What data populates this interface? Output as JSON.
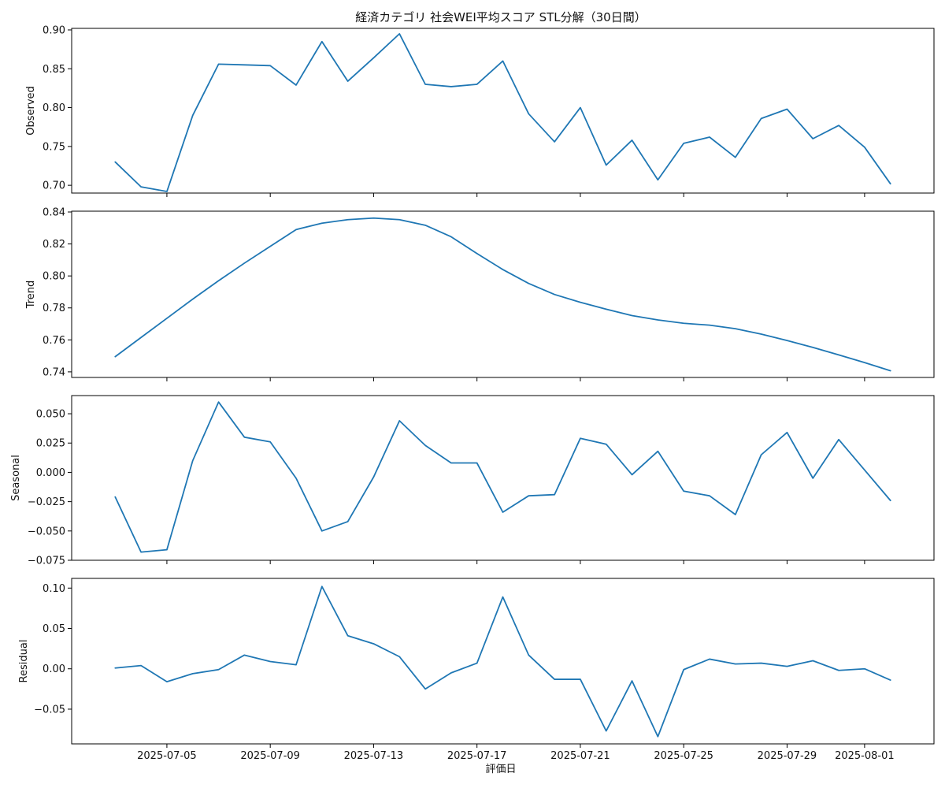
{
  "chart_data": {
    "type": "line",
    "title": "経済カテゴリ 社会WEI平均スコア STL分解（30日間）",
    "xlabel": "評価日",
    "color": "#1f77b4",
    "x": [
      "2025-07-03",
      "2025-07-04",
      "2025-07-05",
      "2025-07-06",
      "2025-07-07",
      "2025-07-08",
      "2025-07-09",
      "2025-07-10",
      "2025-07-11",
      "2025-07-12",
      "2025-07-13",
      "2025-07-14",
      "2025-07-15",
      "2025-07-16",
      "2025-07-17",
      "2025-07-18",
      "2025-07-19",
      "2025-07-20",
      "2025-07-21",
      "2025-07-22",
      "2025-07-23",
      "2025-07-24",
      "2025-07-25",
      "2025-07-26",
      "2025-07-27",
      "2025-07-28",
      "2025-07-29",
      "2025-07-30",
      "2025-07-31",
      "2025-08-01",
      "2025-08-02"
    ],
    "x_ticks": [
      "2025-07-05",
      "2025-07-09",
      "2025-07-13",
      "2025-07-17",
      "2025-07-21",
      "2025-07-25",
      "2025-07-29",
      "2025-08-01"
    ],
    "panels": [
      {
        "name": "Observed",
        "ylabel": "Observed",
        "ylim": [
          0.69,
          0.902
        ],
        "yticks": [
          0.7,
          0.75,
          0.8,
          0.85,
          0.9
        ],
        "ytick_labels": [
          "0.70",
          "0.75",
          "0.80",
          "0.85",
          "0.90"
        ],
        "values": [
          0.73,
          0.698,
          0.692,
          0.79,
          0.856,
          0.855,
          0.854,
          0.829,
          0.885,
          0.834,
          0.864,
          0.895,
          0.83,
          0.827,
          0.83,
          0.86,
          0.792,
          0.756,
          0.8,
          0.726,
          0.758,
          0.707,
          0.754,
          0.762,
          0.736,
          0.786,
          0.798,
          0.76,
          0.777,
          0.749,
          0.702
        ]
      },
      {
        "name": "Trend",
        "ylabel": "Trend",
        "ylim": [
          0.7365,
          0.8405
        ],
        "yticks": [
          0.74,
          0.76,
          0.78,
          0.8,
          0.82,
          0.84
        ],
        "ytick_labels": [
          "0.74",
          "0.76",
          "0.78",
          "0.80",
          "0.82",
          "0.84"
        ],
        "values": [
          0.7495,
          0.7615,
          0.7735,
          0.7855,
          0.797,
          0.808,
          0.8185,
          0.829,
          0.833,
          0.8352,
          0.8362,
          0.8352,
          0.8317,
          0.8245,
          0.814,
          0.804,
          0.7953,
          0.7884,
          0.7835,
          0.7792,
          0.7752,
          0.7725,
          0.7704,
          0.7692,
          0.767,
          0.7636,
          0.7596,
          0.7553,
          0.7506,
          0.7458,
          0.7407
        ]
      },
      {
        "name": "Seasonal",
        "ylabel": "Seasonal",
        "ylim": [
          -0.075,
          0.0655
        ],
        "yticks": [
          -0.075,
          -0.05,
          -0.025,
          0.0,
          0.025,
          0.05
        ],
        "ytick_labels": [
          "−0.075",
          "−0.050",
          "−0.025",
          "0.000",
          "0.025",
          "0.050"
        ],
        "values": [
          -0.021,
          -0.068,
          -0.066,
          0.01,
          0.06,
          0.03,
          0.026,
          -0.005,
          -0.05,
          -0.042,
          -0.004,
          0.044,
          0.023,
          0.008,
          0.008,
          -0.034,
          -0.02,
          -0.019,
          0.029,
          0.024,
          -0.002,
          0.018,
          -0.016,
          -0.02,
          -0.036,
          0.015,
          0.034,
          -0.005,
          0.028,
          0.002,
          -0.024
        ]
      },
      {
        "name": "Residual",
        "ylabel": "Residual",
        "ylim": [
          -0.093,
          0.112
        ],
        "yticks": [
          -0.05,
          0.0,
          0.05,
          0.1
        ],
        "ytick_labels": [
          "−0.05",
          "0.00",
          "0.05",
          "0.10"
        ],
        "values": [
          0.001,
          0.004,
          -0.016,
          -0.006,
          -0.001,
          0.017,
          0.009,
          0.005,
          0.102,
          0.041,
          0.031,
          0.015,
          -0.025,
          -0.005,
          0.007,
          0.089,
          0.017,
          -0.013,
          -0.013,
          -0.077,
          -0.015,
          -0.084,
          -0.001,
          0.012,
          0.006,
          0.007,
          0.003,
          0.01,
          -0.002,
          0.0,
          -0.014
        ]
      }
    ]
  }
}
